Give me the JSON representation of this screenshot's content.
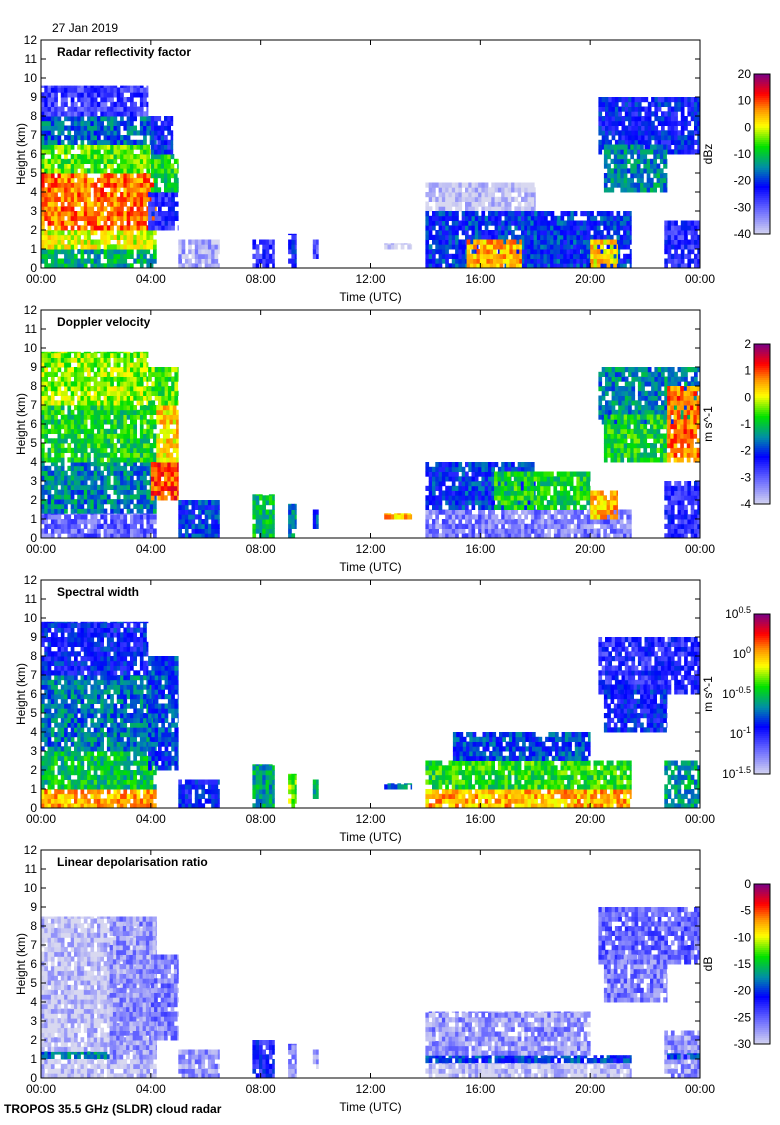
{
  "date": "27 Jan 2019",
  "footer": "TROPOS 35.5 GHz (SLDR) cloud radar",
  "chart_data": [
    {
      "type": "heatmap",
      "title": "Radar reflectivity factor",
      "xlabel": "Time (UTC)",
      "ylabel": "Height (km)",
      "xlim": [
        0,
        24
      ],
      "ylim": [
        0,
        12
      ],
      "xticks": [
        "00:00",
        "04:00",
        "08:00",
        "12:00",
        "16:00",
        "20:00",
        "00:00"
      ],
      "yticks": [
        "0",
        "1",
        "2",
        "3",
        "4",
        "5",
        "6",
        "7",
        "8",
        "9",
        "10",
        "11",
        "12"
      ],
      "colorbar": {
        "label": "dBz",
        "range": [
          -40,
          20
        ],
        "ticks": [
          "20",
          "10",
          "0",
          "-10",
          "-20",
          "-30",
          "-40"
        ],
        "scale": "linear"
      },
      "regions": [
        [
          0,
          4.2,
          0,
          1,
          -12
        ],
        [
          0,
          4.2,
          1,
          2,
          0
        ],
        [
          0,
          4.2,
          2,
          5,
          8
        ],
        [
          0,
          4.2,
          5,
          6.5,
          -5
        ],
        [
          0,
          4.2,
          6.5,
          8,
          -17
        ],
        [
          0,
          3.9,
          8,
          9.6,
          -27
        ],
        [
          3.9,
          5,
          2,
          4,
          -25
        ],
        [
          4,
          5,
          4,
          6,
          -8
        ],
        [
          4,
          4.8,
          6,
          8,
          -22
        ],
        [
          5,
          6.5,
          0,
          1.5,
          -36
        ],
        [
          7.7,
          8.5,
          0,
          1.5,
          -26
        ],
        [
          9,
          9.3,
          0,
          1.8,
          -22
        ],
        [
          9.9,
          10.1,
          0.5,
          1.5,
          -28
        ],
        [
          12.5,
          13.5,
          1,
          1.3,
          -38
        ],
        [
          14,
          18,
          3,
          4.5,
          -39
        ],
        [
          14,
          21.5,
          0,
          3,
          -20
        ],
        [
          15.5,
          17.5,
          0,
          1.5,
          5
        ],
        [
          17.7,
          20,
          0,
          2.5,
          -20
        ],
        [
          20,
          21,
          0,
          1.5,
          3
        ],
        [
          20.3,
          24,
          6,
          9,
          -22
        ],
        [
          20.5,
          22.8,
          4,
          6.5,
          -15
        ],
        [
          22.7,
          24,
          0,
          2.5,
          -25
        ]
      ]
    },
    {
      "type": "heatmap",
      "title": "Doppler velocity",
      "xlabel": "Time (UTC)",
      "ylabel": "Height (km)",
      "xlim": [
        0,
        24
      ],
      "ylim": [
        0,
        12
      ],
      "xticks": [
        "00:00",
        "04:00",
        "08:00",
        "12:00",
        "16:00",
        "20:00",
        "00:00"
      ],
      "yticks": [
        "0",
        "1",
        "2",
        "3",
        "4",
        "5",
        "6",
        "7",
        "8",
        "9",
        "10",
        "11",
        "12"
      ],
      "colorbar": {
        "label": "m s^-1",
        "range": [
          -4,
          2
        ],
        "ticks": [
          "2",
          "1",
          "0",
          "-1",
          "-2",
          "-3",
          "-4"
        ],
        "scale": "linear"
      },
      "regions": [
        [
          0,
          4.2,
          0,
          1.3,
          -3
        ],
        [
          0,
          4.2,
          1.3,
          4,
          -1.5
        ],
        [
          0,
          4.2,
          4,
          7,
          -0.8
        ],
        [
          0,
          3.9,
          7,
          9.8,
          -0.3
        ],
        [
          4,
          5,
          2,
          4,
          1
        ],
        [
          4.2,
          5,
          4,
          7,
          0.3
        ],
        [
          3.9,
          5,
          7,
          9,
          -0.5
        ],
        [
          5,
          6.5,
          0,
          2,
          -2
        ],
        [
          7.7,
          8.5,
          0,
          2.3,
          -1
        ],
        [
          9,
          9.3,
          0,
          1.8,
          -1.5
        ],
        [
          9.9,
          10.1,
          0.5,
          1.5,
          -2
        ],
        [
          12.5,
          13.5,
          1,
          1.3,
          0.5
        ],
        [
          14,
          21.5,
          0,
          1.5,
          -3.2
        ],
        [
          14,
          18,
          1.5,
          4,
          -2
        ],
        [
          16.5,
          20,
          1.5,
          3.5,
          -0.8
        ],
        [
          20,
          21,
          1,
          2.5,
          0.5
        ],
        [
          20.3,
          24,
          6,
          9,
          -1.5
        ],
        [
          20.5,
          22.8,
          4,
          6.5,
          -0.8
        ],
        [
          22.8,
          24,
          4,
          8,
          0.8
        ],
        [
          22.7,
          24,
          0,
          3,
          -2.5
        ]
      ]
    },
    {
      "type": "heatmap",
      "title": "Spectral width",
      "xlabel": "Time (UTC)",
      "ylabel": "Height (km)",
      "xlim": [
        0,
        24
      ],
      "ylim": [
        0,
        12
      ],
      "xticks": [
        "00:00",
        "04:00",
        "08:00",
        "12:00",
        "16:00",
        "20:00",
        "00:00"
      ],
      "yticks": [
        "0",
        "1",
        "2",
        "3",
        "4",
        "5",
        "6",
        "7",
        "8",
        "9",
        "10",
        "11",
        "12"
      ],
      "colorbar": {
        "label": "m s^-1",
        "range": [
          -1.5,
          0.5
        ],
        "ticks": [
          "10^0.5",
          "10^0",
          "10^-0.5",
          "10^-1",
          "10^-1.5"
        ],
        "scale": "log10"
      },
      "regions": [
        [
          0,
          4.2,
          0,
          1,
          0
        ],
        [
          0,
          4.2,
          1,
          3,
          -0.5
        ],
        [
          0,
          4.2,
          3,
          7,
          -0.7
        ],
        [
          0,
          3.9,
          7,
          9.8,
          -0.9
        ],
        [
          3.9,
          5,
          2,
          8,
          -0.8
        ],
        [
          5,
          6.5,
          0,
          1.5,
          -0.9
        ],
        [
          7.7,
          8.5,
          0,
          2.3,
          -0.6
        ],
        [
          9,
          9.3,
          0,
          1.8,
          -0.3
        ],
        [
          9.9,
          10.1,
          0.5,
          1.5,
          -0.5
        ],
        [
          12.5,
          13.5,
          1,
          1.3,
          -0.7
        ],
        [
          14,
          21.5,
          0,
          1,
          0
        ],
        [
          14,
          21.5,
          1,
          2.5,
          -0.4
        ],
        [
          15,
          20,
          2.5,
          4,
          -0.8
        ],
        [
          20.3,
          24,
          6,
          9,
          -1
        ],
        [
          20.5,
          22.8,
          4,
          6.5,
          -0.9
        ],
        [
          22.7,
          24,
          0,
          2.5,
          -0.6
        ]
      ]
    },
    {
      "type": "heatmap",
      "title": "Linear depolarisation ratio",
      "xlabel": "Time (UTC)",
      "ylabel": "Height (km)",
      "xlim": [
        0,
        24
      ],
      "ylim": [
        0,
        12
      ],
      "xticks": [
        "00:00",
        "04:00",
        "08:00",
        "12:00",
        "16:00",
        "20:00",
        "00:00"
      ],
      "yticks": [
        "0",
        "1",
        "2",
        "3",
        "4",
        "5",
        "6",
        "7",
        "8",
        "9",
        "10",
        "11",
        "12"
      ],
      "colorbar": {
        "label": "dB",
        "range": [
          -30,
          0
        ],
        "ticks": [
          "0",
          "-5",
          "-10",
          "-15",
          "-20",
          "-25",
          "-30"
        ],
        "scale": "linear"
      },
      "regions": [
        [
          0,
          2.5,
          1,
          1.4,
          -18
        ],
        [
          0,
          4.2,
          0,
          1,
          -29
        ],
        [
          0,
          4.2,
          1.4,
          8.5,
          -29
        ],
        [
          2.5,
          4.2,
          1,
          8.5,
          -27
        ],
        [
          4,
          5,
          2,
          6.5,
          -26
        ],
        [
          5,
          6.5,
          0,
          1.5,
          -27
        ],
        [
          7.7,
          8.5,
          0,
          2,
          -22
        ],
        [
          9,
          9.3,
          0,
          1.8,
          -26
        ],
        [
          9.9,
          10.1,
          0.5,
          1.5,
          -28
        ],
        [
          14,
          21.5,
          0,
          0.8,
          -29
        ],
        [
          14,
          21.5,
          0.8,
          1.2,
          -20
        ],
        [
          14,
          20,
          1.2,
          3.5,
          -27
        ],
        [
          20.3,
          24,
          6,
          9,
          -25
        ],
        [
          20.5,
          22.8,
          4,
          6.5,
          -26
        ],
        [
          22.7,
          24,
          0,
          2.5,
          -27
        ],
        [
          22.8,
          24,
          1,
          1.3,
          -20
        ]
      ]
    }
  ]
}
